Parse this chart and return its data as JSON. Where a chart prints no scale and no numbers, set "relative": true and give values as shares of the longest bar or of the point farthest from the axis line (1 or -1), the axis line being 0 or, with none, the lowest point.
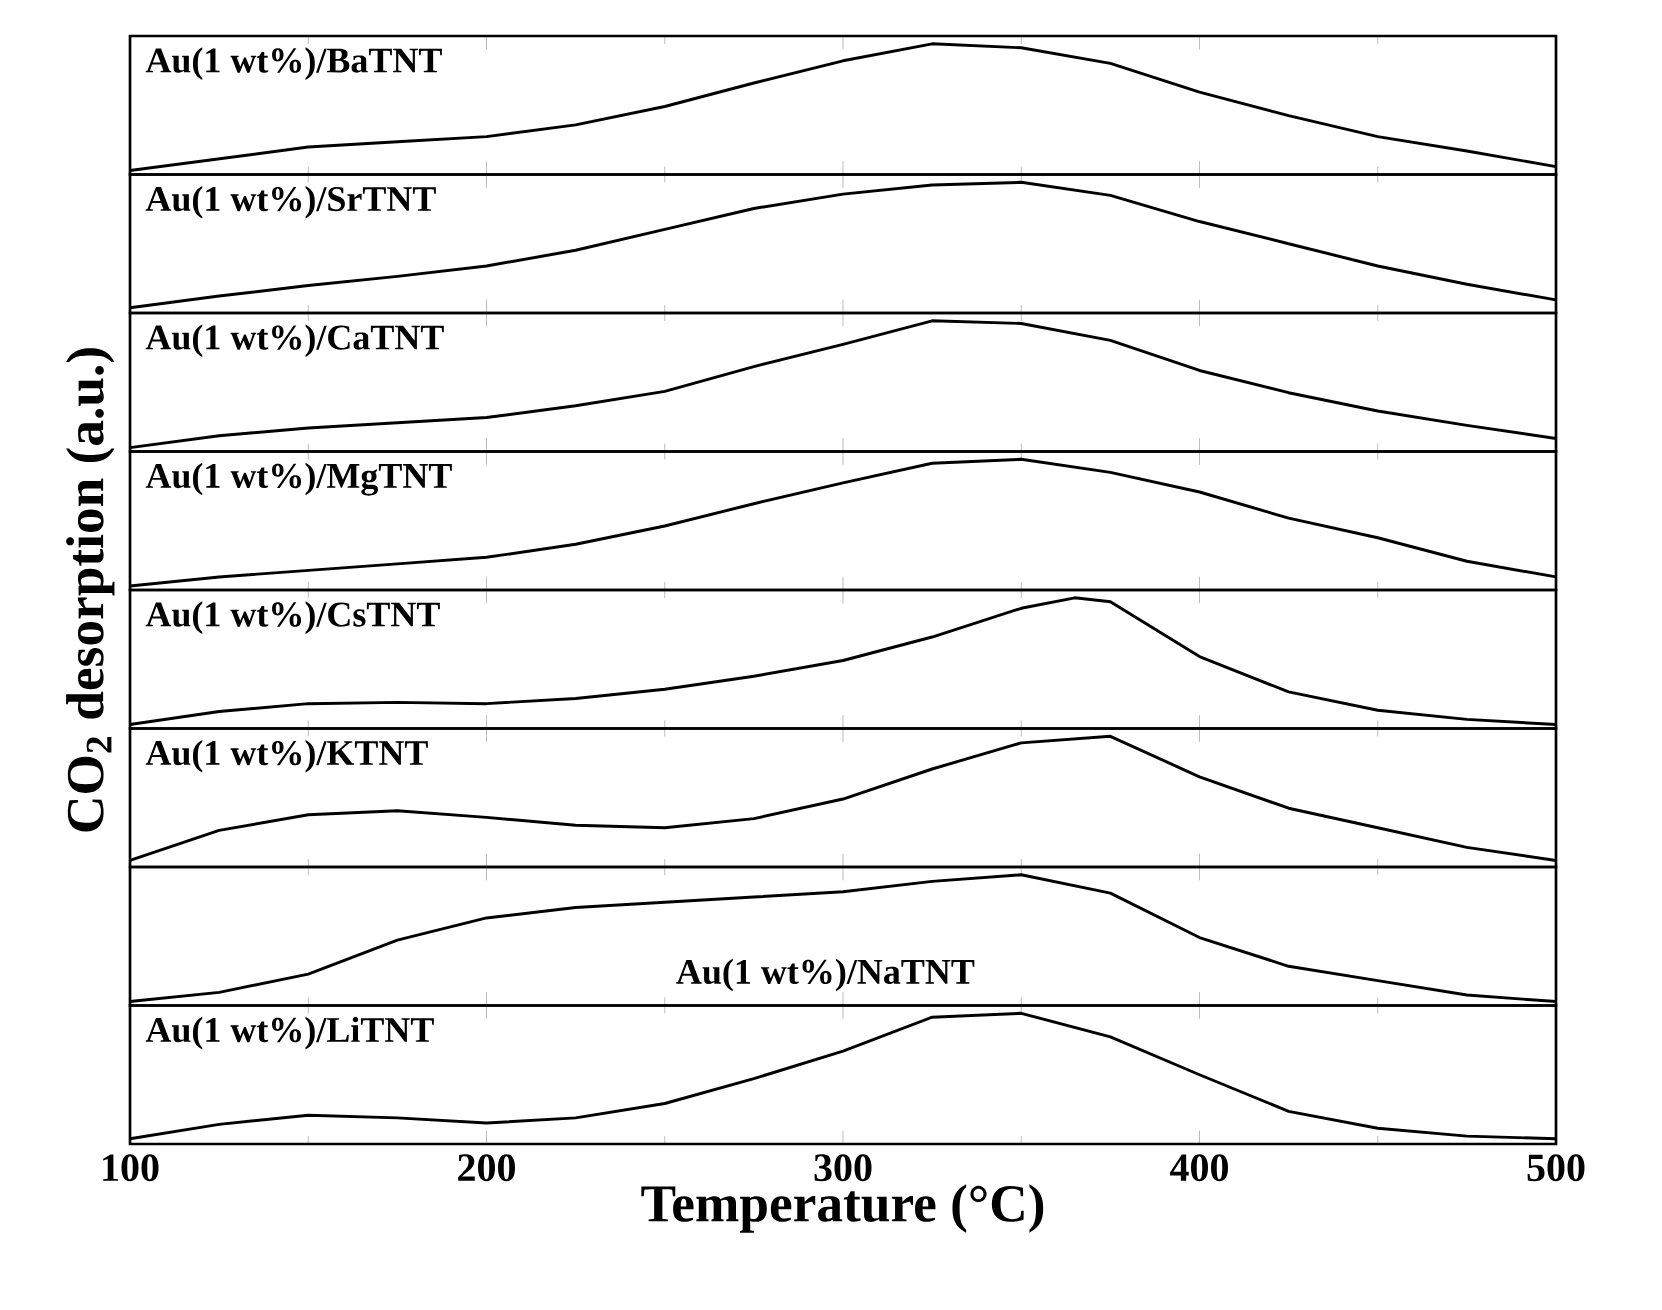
{
  "chart_data": [
    {
      "type": "line",
      "relative": true,
      "color": "#000000",
      "x": [
        100,
        125,
        150,
        175,
        200,
        225,
        250,
        275,
        300,
        325,
        350,
        375,
        400,
        425,
        450,
        475,
        500
      ],
      "values": [
        0.03,
        0.12,
        0.21,
        0.25,
        0.29,
        0.38,
        0.52,
        0.7,
        0.87,
        1,
        0.97,
        0.85,
        0.63,
        0.45,
        0.29,
        0.18,
        0.06
      ],
      "annotations": [
        "Au(1 wt%)/BaTNT"
      ],
      "xlim": [
        100,
        500
      ],
      "xticks": [
        100,
        200,
        300,
        400,
        500
      ],
      "tick_labels": false
    },
    {
      "type": "line",
      "relative": true,
      "color": "#000000",
      "x": [
        100,
        125,
        150,
        175,
        200,
        225,
        250,
        275,
        300,
        325,
        350,
        375,
        400,
        425,
        450,
        475,
        500
      ],
      "values": [
        0.04,
        0.13,
        0.21,
        0.28,
        0.36,
        0.48,
        0.64,
        0.8,
        0.91,
        0.98,
        1,
        0.9,
        0.7,
        0.53,
        0.36,
        0.22,
        0.1
      ],
      "annotations": [
        "Au(1 wt%)/SrTNT"
      ],
      "xlim": [
        100,
        500
      ],
      "xticks": [
        100,
        200,
        300,
        400,
        500
      ],
      "tick_labels": false
    },
    {
      "type": "line",
      "relative": true,
      "color": "#000000",
      "x": [
        100,
        125,
        150,
        175,
        200,
        225,
        250,
        275,
        300,
        325,
        350,
        375,
        400,
        425,
        450,
        475,
        500
      ],
      "values": [
        0.03,
        0.12,
        0.18,
        0.22,
        0.26,
        0.35,
        0.46,
        0.65,
        0.82,
        1,
        0.98,
        0.85,
        0.62,
        0.45,
        0.31,
        0.2,
        0.1
      ],
      "annotations": [
        "Au(1 wt%)/CaTNT"
      ],
      "xlim": [
        100,
        500
      ],
      "xticks": [
        100,
        200,
        300,
        400,
        500
      ],
      "tick_labels": false
    },
    {
      "type": "line",
      "relative": true,
      "color": "#000000",
      "x": [
        100,
        125,
        150,
        175,
        200,
        225,
        250,
        275,
        300,
        325,
        350,
        375,
        400,
        425,
        450,
        475,
        500
      ],
      "values": [
        0.03,
        0.1,
        0.15,
        0.2,
        0.25,
        0.35,
        0.49,
        0.66,
        0.82,
        0.97,
        1,
        0.9,
        0.75,
        0.55,
        0.4,
        0.22,
        0.1
      ],
      "annotations": [
        "Au(1 wt%)/MgTNT"
      ],
      "xlim": [
        100,
        500
      ],
      "xticks": [
        100,
        200,
        300,
        400,
        500
      ],
      "tick_labels": false
    },
    {
      "type": "line",
      "relative": true,
      "color": "#000000",
      "x": [
        100,
        125,
        150,
        175,
        200,
        225,
        250,
        275,
        300,
        325,
        350,
        365,
        375,
        400,
        425,
        450,
        475,
        500
      ],
      "values": [
        0.03,
        0.13,
        0.19,
        0.2,
        0.19,
        0.23,
        0.3,
        0.4,
        0.52,
        0.7,
        0.92,
        1,
        0.97,
        0.55,
        0.28,
        0.14,
        0.07,
        0.03
      ],
      "annotations": [
        "Au(1 wt%)/CsTNT"
      ],
      "xlim": [
        100,
        500
      ],
      "xticks": [
        100,
        200,
        300,
        400,
        500
      ],
      "tick_labels": false
    },
    {
      "type": "line",
      "relative": true,
      "color": "#000000",
      "x": [
        100,
        125,
        150,
        175,
        200,
        225,
        250,
        275,
        300,
        325,
        350,
        375,
        400,
        425,
        450,
        475,
        500
      ],
      "values": [
        0.05,
        0.28,
        0.4,
        0.43,
        0.38,
        0.32,
        0.3,
        0.37,
        0.52,
        0.75,
        0.95,
        1,
        0.69,
        0.45,
        0.3,
        0.15,
        0.05
      ],
      "annotations": [
        "Au(1 wt%)/KTNT"
      ],
      "xlim": [
        100,
        500
      ],
      "xticks": [
        100,
        200,
        300,
        400,
        500
      ],
      "tick_labels": false
    },
    {
      "type": "line",
      "relative": true,
      "color": "#000000",
      "x": [
        100,
        125,
        150,
        175,
        200,
        225,
        250,
        275,
        300,
        325,
        350,
        375,
        400,
        425,
        450,
        475,
        500
      ],
      "values": [
        0.03,
        0.1,
        0.24,
        0.5,
        0.67,
        0.75,
        0.79,
        0.83,
        0.87,
        0.95,
        1,
        0.86,
        0.52,
        0.3,
        0.19,
        0.08,
        0.03
      ],
      "annotations": [
        "Au(1 wt%)/NaTNT"
      ],
      "xlim": [
        100,
        500
      ],
      "xticks": [
        100,
        200,
        300,
        400,
        500
      ],
      "tick_labels": false
    },
    {
      "type": "line",
      "relative": true,
      "color": "#000000",
      "x": [
        100,
        125,
        150,
        175,
        200,
        225,
        250,
        275,
        300,
        325,
        350,
        375,
        400,
        425,
        450,
        475,
        500
      ],
      "values": [
        0.04,
        0.15,
        0.22,
        0.2,
        0.16,
        0.2,
        0.31,
        0.5,
        0.71,
        0.97,
        1,
        0.82,
        0.53,
        0.25,
        0.12,
        0.06,
        0.04
      ],
      "annotations": [
        "Au(1 wt%)/LiTNT"
      ],
      "xlim": [
        100,
        500
      ],
      "xticks": [
        100,
        200,
        300,
        400,
        500
      ],
      "tick_labels": "x",
      "xlabel": "Temperature (°C)",
      "ylabel": "CO$_{2}$ desorption (a.u.)"
    }
  ]
}
